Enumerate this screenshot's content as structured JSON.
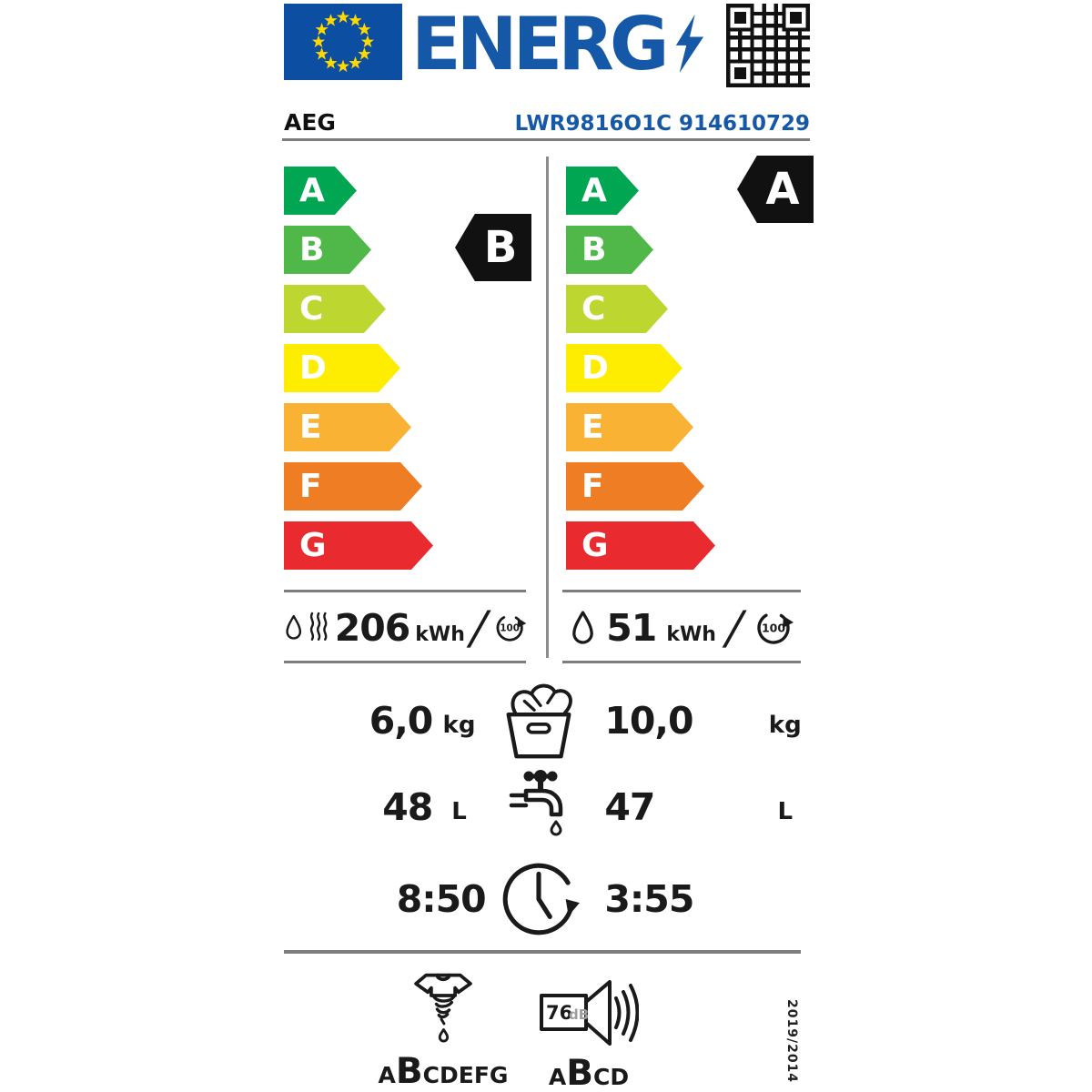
{
  "header": {
    "logo_text": "ENERG",
    "brand": "AEG",
    "model": "LWR9816O1C 914610729"
  },
  "colors": {
    "logo_blue": "#1558A8",
    "flag_blue": "#0B4EA2",
    "star_yellow": "#FFD800",
    "line_gray": "#7d7d7d",
    "indicator_black": "#111111"
  },
  "scale_classes": [
    {
      "label": "A",
      "color": "#00A651"
    },
    {
      "label": "B",
      "color": "#50B848"
    },
    {
      "label": "C",
      "color": "#BED730"
    },
    {
      "label": "D",
      "color": "#FFED00"
    },
    {
      "label": "E",
      "color": "#F9B233"
    },
    {
      "label": "F",
      "color": "#EF7D23"
    },
    {
      "label": "G",
      "color": "#E92A2F"
    }
  ],
  "wash_dry_column": {
    "rating": "B",
    "energy_value": "206",
    "energy_unit": "kWh",
    "separator": "/",
    "cycles": "100"
  },
  "wash_column": {
    "rating": "A",
    "energy_value": "51",
    "energy_unit": "kWh",
    "separator": "/",
    "cycles": "100"
  },
  "capacity": {
    "wash_dry_value": "6,0",
    "unit_left": "kg",
    "wash_value": "10,0",
    "unit_right": "kg"
  },
  "water": {
    "wash_dry_value": "48",
    "unit_left": "L",
    "wash_value": "47",
    "unit_right": "L"
  },
  "duration": {
    "wash_dry_value": "8:50",
    "wash_value": "3:55"
  },
  "spin": {
    "scale": [
      "A",
      "B",
      "C",
      "D",
      "E",
      "F",
      "G"
    ],
    "selected": "B"
  },
  "noise": {
    "value": "76",
    "unit": "dB",
    "scale": [
      "A",
      "B",
      "C",
      "D"
    ],
    "selected": "B"
  },
  "regulation": "2019/2014",
  "icons": {
    "eu-flag-icon": "blue rectangle with 12 yellow stars",
    "lightning-bolt-icon": "blue bolt after ENERG wordmark",
    "qr-code-icon": "QR code top right",
    "water-drop-icon": "washing water drop",
    "heat-waves-icon": "drying heat waves",
    "per-100-cycles-icon": "circular arrow with 100",
    "laundry-basket-icon": "rated capacity",
    "tap-icon": "water consumption per cycle",
    "clock-icon": "programme duration",
    "wring-shirt-icon": "spin-drying efficiency class",
    "speaker-icon": "airborne noise emission"
  }
}
